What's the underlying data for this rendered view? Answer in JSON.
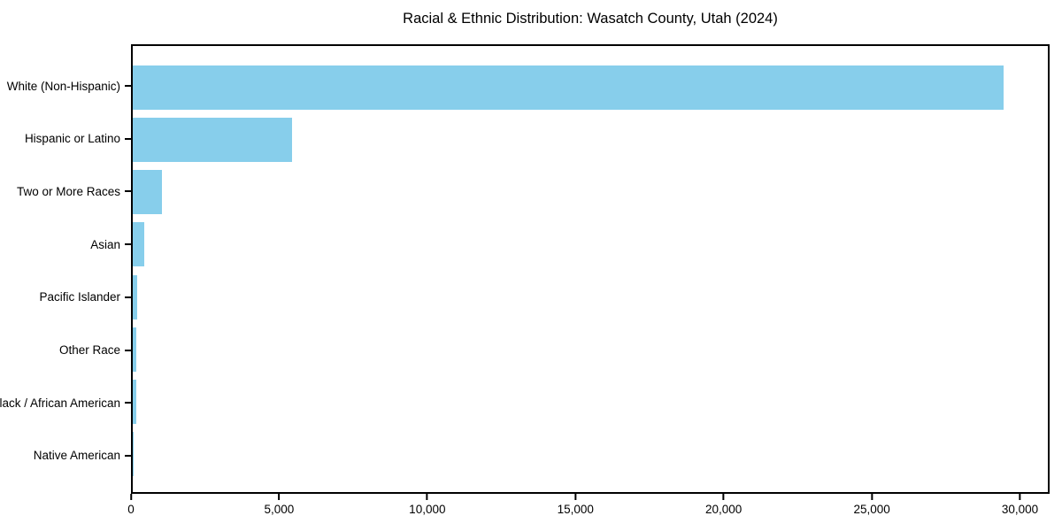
{
  "figure": {
    "background": "#ffffff",
    "text_color": "#000000",
    "frame_color": "#000000"
  },
  "chart_data": {
    "type": "bar",
    "orientation": "horizontal",
    "title": "Racial & Ethnic Distribution: Wasatch County, Utah (2024)",
    "xlabel": "",
    "ylabel": "",
    "categories": [
      "White (Non-Hispanic)",
      "Hispanic or Latino",
      "Two or More Races",
      "Asian",
      "Pacific Islander",
      "Other Race",
      "Black / African American",
      "Native American"
    ],
    "values": [
      29500,
      5400,
      1000,
      400,
      155,
      130,
      110,
      30
    ],
    "xlim": [
      0,
      31000
    ],
    "x_ticks": [
      0,
      5000,
      10000,
      15000,
      20000,
      25000,
      30000
    ],
    "x_tick_labels": [
      "0",
      "5,000",
      "10,000",
      "15,000",
      "20,000",
      "25,000",
      "30,000"
    ],
    "bar_color": "#87CEEB",
    "grid": false,
    "legend": null
  }
}
